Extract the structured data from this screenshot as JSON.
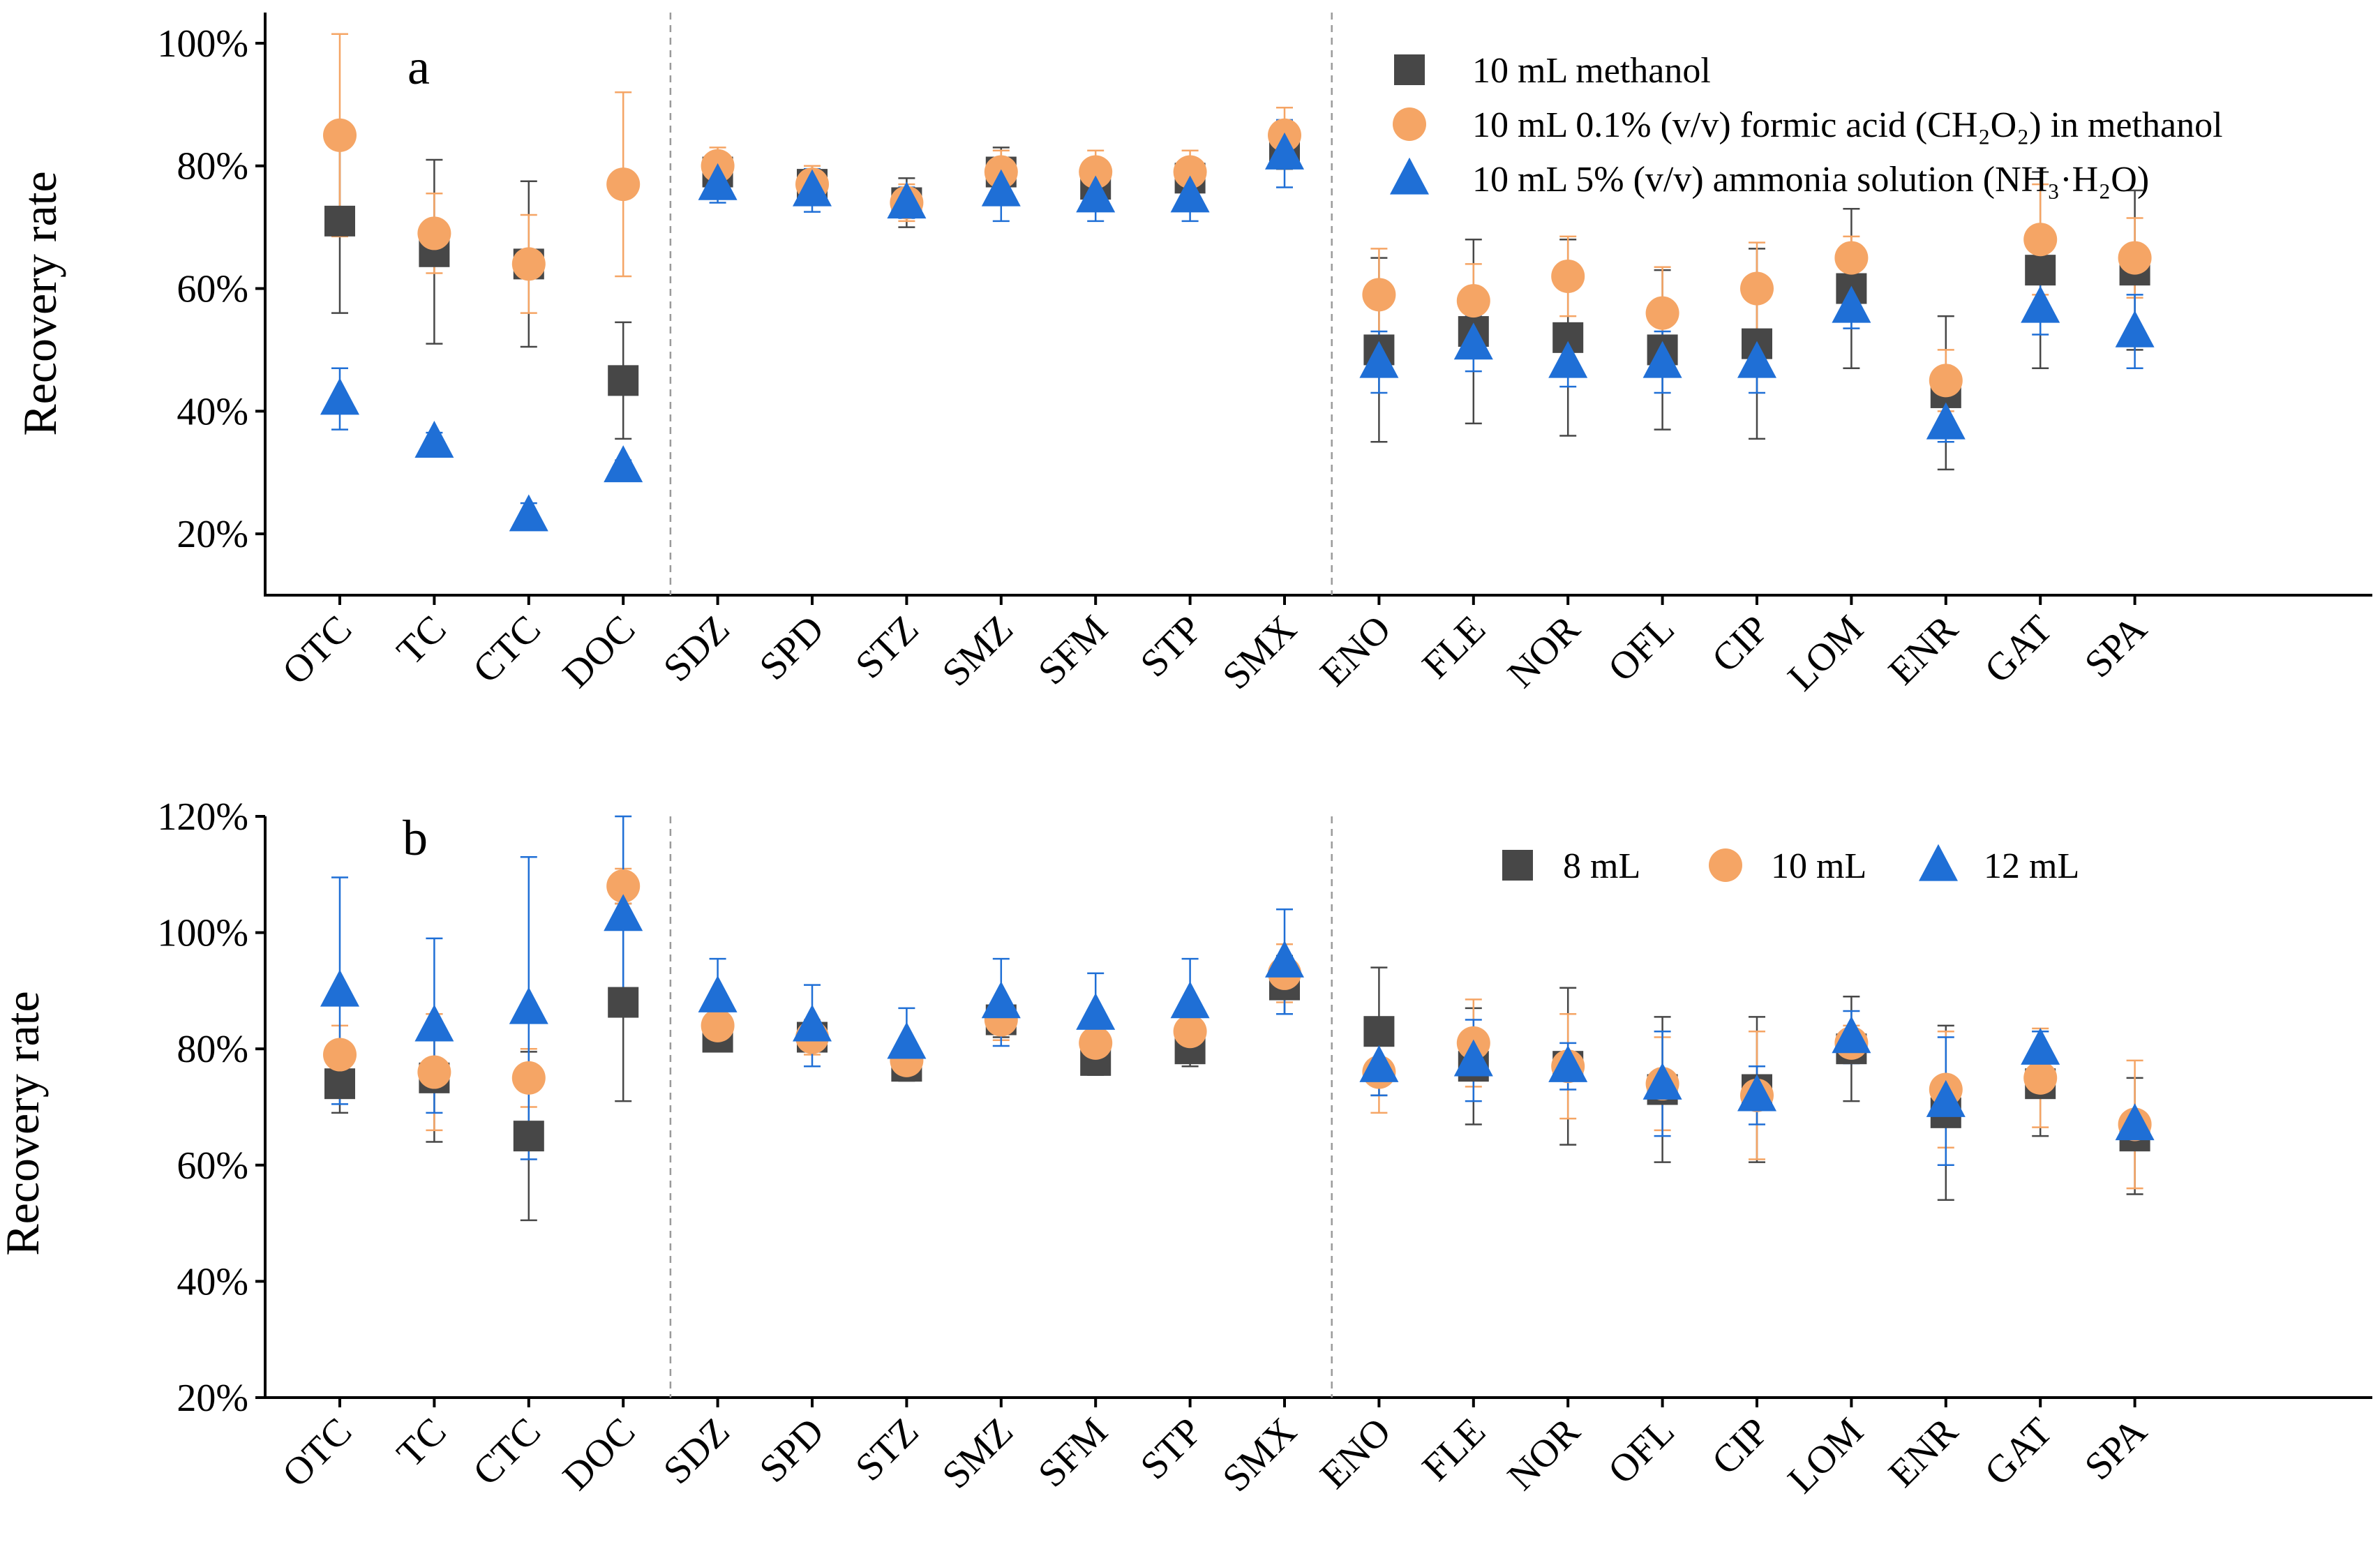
{
  "chart_data": [
    {
      "panel": "a",
      "type": "scatter",
      "panel_label": "a",
      "ylabel": "Recovery rate",
      "ylim": [
        10,
        105
      ],
      "yticks": [
        20,
        40,
        60,
        80,
        100
      ],
      "ytick_labels": [
        "20%",
        "40%",
        "60%",
        "80%",
        "100%"
      ],
      "categories": [
        "OTC",
        "TC",
        "CTC",
        "DOC",
        "SDZ",
        "SPD",
        "STZ",
        "SMZ",
        "SFM",
        "STP",
        "SMX",
        "ENO",
        "FLE",
        "NOR",
        "OFL",
        "CIP",
        "LOM",
        "ENR",
        "GAT",
        "SPA"
      ],
      "group_separators_after": [
        4,
        11
      ],
      "legend_position": "top-right",
      "series": [
        {
          "name": "10 mL methanol",
          "marker": "square",
          "color": "#474747",
          "values": [
            71,
            66,
            64,
            45,
            79,
            77,
            74,
            79,
            77,
            78,
            83,
            50,
            53,
            52,
            50,
            51,
            60,
            43,
            63,
            63
          ],
          "errors": [
            15,
            15,
            13.5,
            9.5,
            3,
            3,
            4,
            4,
            3,
            3,
            3.5,
            15,
            15,
            16,
            13,
            15.5,
            13,
            12.5,
            16,
            13
          ]
        },
        {
          "name": "10 mL 0.1% (v/v) formic acid (CH₂O₂) in methanol",
          "marker": "circle",
          "color": "#F5A565",
          "values": [
            85,
            69,
            64,
            77,
            80,
            77,
            74,
            79,
            79,
            79,
            85,
            59,
            58,
            62,
            56,
            60,
            65,
            45,
            68,
            65
          ],
          "errors": [
            16.5,
            6.5,
            8,
            15,
            3,
            3,
            3,
            3.5,
            3.5,
            3.5,
            4.5,
            7.5,
            6,
            6.5,
            7.5,
            7.5,
            3.5,
            5,
            9,
            6.5
          ]
        },
        {
          "name": "10 mL 5% (v/v) ammonia solution (NH₃·H₂O)",
          "marker": "triangle",
          "color": "#1F6FD6",
          "values": [
            42,
            35,
            23,
            31,
            77,
            76,
            74,
            76,
            75,
            75,
            82,
            48,
            51,
            48,
            48,
            48,
            57,
            38,
            57,
            53
          ],
          "errors": [
            5,
            1.5,
            2,
            1,
            3,
            3.5,
            2.5,
            5,
            4,
            4,
            5.5,
            5,
            4.5,
            4,
            5,
            5,
            3.5,
            3,
            4.5,
            6
          ]
        }
      ]
    },
    {
      "panel": "b",
      "type": "scatter",
      "panel_label": "b",
      "ylabel": "Recovery rate",
      "ylim": [
        20,
        120
      ],
      "yticks": [
        20,
        40,
        60,
        80,
        100,
        120
      ],
      "ytick_labels": [
        "20%",
        "40%",
        "60%",
        "80%",
        "100%",
        "120%"
      ],
      "categories": [
        "OTC",
        "TC",
        "CTC",
        "DOC",
        "SDZ",
        "SPD",
        "STZ",
        "SMZ",
        "SFM",
        "STP",
        "SMX",
        "ENO",
        "FLE",
        "NOR",
        "OFL",
        "CIP",
        "LOM",
        "ENR",
        "GAT",
        "SPA"
      ],
      "group_separators_after": [
        4,
        11
      ],
      "legend_position": "top-right",
      "series": [
        {
          "name": "8 mL",
          "marker": "square",
          "color": "#474747",
          "values": [
            74,
            75,
            65,
            88,
            82,
            82,
            77,
            85,
            78,
            80,
            91,
            83,
            77,
            77,
            73,
            73,
            80,
            69,
            74,
            65
          ],
          "errors": [
            5,
            11,
            14.5,
            17,
            2,
            2,
            2.5,
            3,
            2.5,
            3,
            5,
            11,
            10,
            13.5,
            12.5,
            12.5,
            9,
            15,
            9,
            10
          ]
        },
        {
          "name": "10 mL",
          "marker": "circle",
          "color": "#F5A565",
          "values": [
            79,
            76,
            75,
            108,
            84,
            82,
            78,
            85,
            81,
            83,
            93,
            76,
            81,
            77,
            74,
            72,
            81,
            73,
            75,
            67
          ],
          "errors": [
            5,
            10,
            5,
            3,
            3,
            3,
            3,
            3.5,
            3.5,
            3.5,
            5,
            7,
            7.5,
            9,
            8,
            11,
            3,
            10,
            8.5,
            11
          ]
        },
        {
          "name": "12 mL",
          "marker": "triangle",
          "color": "#1F6FD6",
          "values": [
            90,
            84,
            87,
            103,
            89,
            84,
            81,
            88,
            86,
            88,
            95,
            77,
            78,
            77,
            74,
            72,
            82,
            71,
            80,
            67
          ],
          "errors": [
            19.5,
            15,
            26,
            17,
            6.5,
            7,
            6,
            7.5,
            7,
            7.5,
            9,
            5,
            7,
            4,
            9,
            5,
            4.5,
            11,
            3,
            1.5
          ]
        }
      ]
    }
  ]
}
